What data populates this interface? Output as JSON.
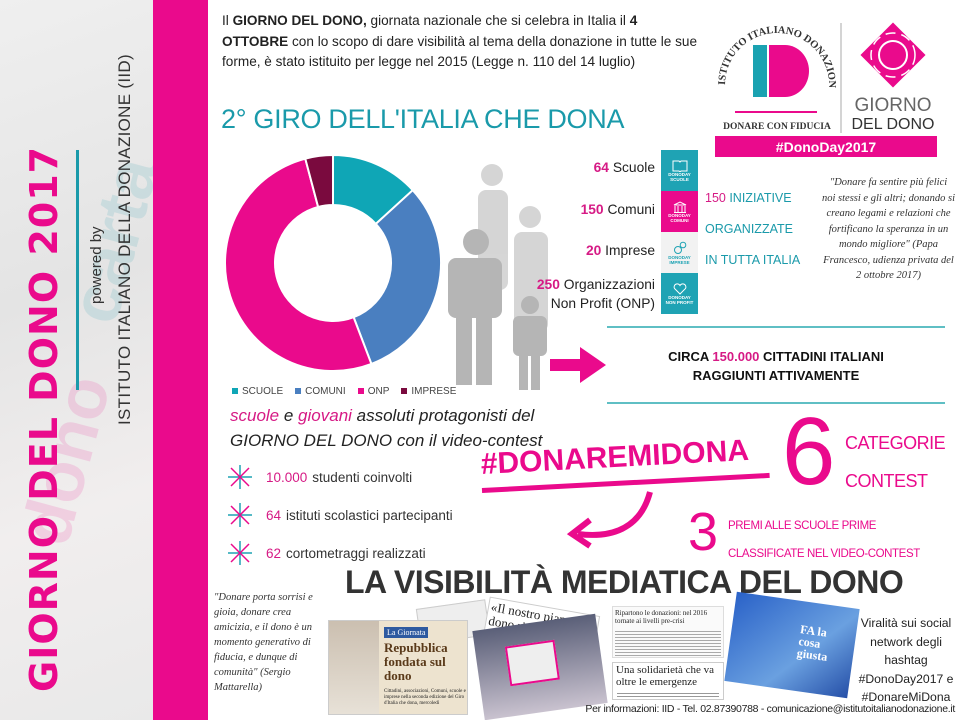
{
  "sidebar": {
    "title": "GIORNO DEL DONO 2017",
    "powered_by": "powered by",
    "institute": "ISTITUTO ITALIANO DELLA DONAZIONE (IID)"
  },
  "intro": {
    "p1": "Il ",
    "b1": "GIORNO DEL DONO,",
    "p2": " giornata nazionale che si celebra in Italia il ",
    "b2": "4 OTTOBRE",
    "p3": " con lo scopo di dare visibilità al tema della donazione in tutte le sue forme, è stato istituito per legge nel 2015 (Legge n. 110 del 14 luglio)"
  },
  "giro_title": "2° GIRO DELL'ITALIA CHE DONA",
  "logo": {
    "arc_text": "ISTITUTO ITALIANO DONAZIONE",
    "mark": "ID",
    "tagline": "DONARE CON FIDUCIA",
    "giorno": "GIORNO",
    "del_dono": "DEL DONO",
    "hashtag": "#DonoDay2017"
  },
  "chart_data": {
    "type": "pie",
    "donut": true,
    "categories": [
      "SCUOLE",
      "COMUNI",
      "ONP",
      "IMPRESE"
    ],
    "values": [
      64,
      150,
      250,
      20
    ],
    "colors": [
      "#0fa6b6",
      "#4a7fc0",
      "#ea0a8c",
      "#7a0a3e"
    ],
    "legend": "bottom"
  },
  "stats": [
    {
      "num": "64",
      "label": "Scuole"
    },
    {
      "num": "150",
      "label": "Comuni"
    },
    {
      "num": "20",
      "label": "Imprese"
    },
    {
      "num": "250",
      "label": "Organizzazioni",
      "label2": "Non Profit (ONP)"
    }
  ],
  "tiles": [
    {
      "icon": "book-icon",
      "brand": "DONODAY",
      "label": "SCUOLE",
      "color": "#1fa3b4"
    },
    {
      "icon": "building-icon",
      "brand": "DONODAY",
      "label": "COMUNI",
      "color": "#ea0a8c"
    },
    {
      "icon": "gears-icon",
      "brand": "DONODAY",
      "label": "IMPRESE",
      "color": "#f2f2f2"
    },
    {
      "icon": "heart-icon",
      "brand": "DONODAY",
      "label": "NON PROFIT",
      "color": "#1fa3b4"
    }
  ],
  "iniziative": {
    "num": "150",
    "l1": " INIZIATIVE",
    "l2": "ORGANIZZATE",
    "l3": "IN TUTTA ITALIA"
  },
  "papa_quote": "\"Donare fa sentire più felici noi stessi e gli altri; donando si creano legami e relazioni che fortificano la speranza in un mondo migliore\" (Papa Francesco, udienza privata del 2 ottobre 2017)",
  "circa": {
    "pre": "CIRCA ",
    "num": "150.000",
    "post": " CITTADINI ITALIANI",
    "line2": "RAGGIUNTI ATTIVAMENTE"
  },
  "scuole_text": {
    "a": "scuole",
    "b": " e ",
    "c": "giovani",
    "d": " assoluti protagonisti del",
    "line2": "GIORNO DEL DONO con il video-contest"
  },
  "bullets": [
    {
      "num": "10.000",
      "text": "studenti coinvolti"
    },
    {
      "num": "64",
      "text": "istituti scolastici partecipanti"
    },
    {
      "num": "62",
      "text": "cortometraggi realizzati"
    }
  ],
  "hashtag": "#DONAREMIDONA",
  "contest": {
    "num": "6",
    "l1": "CATEGORIE",
    "l2": "CONTEST"
  },
  "premi": {
    "num": "3",
    "l1": "PREMI ALLE SCUOLE PRIME",
    "l2": "CLASSIFICATE NEL VIDEO-CONTEST"
  },
  "visibilita": "LA VISIBILITÀ MEDIATICA DEL DONO",
  "mattarella_quote": "\"Donare porta sorrisi e gioia, donare crea amicizia, e il dono è un momento generativo di fiducia, e dunque di comunità\" (Sergio Mattarella)",
  "press": {
    "a_kicker": "La Giornata",
    "a_head": "Repubblica fondata sul dono",
    "a_body": "Cittadini, associazioni, Comuni, scuole e imprese nella seconda edizione del Giro d'Italia che dona, mercoledì",
    "b_head": "«Il nostro pianeta dono ricevuto da co",
    "c_head": "Ripartono le donazioni: nel 2016 tornate ai livelli pre-crisi",
    "d_head": "Una solidarietà che va oltre le emergenze",
    "e_head": "FA la cosa giusta"
  },
  "viral": "Viralità sui social network degli hashtag #DonoDay2017 e #DonareMiDona",
  "footer": "Per informazioni: IID - Tel. 02.87390788 - comunicazione@istitutoitalianodonazione.it"
}
